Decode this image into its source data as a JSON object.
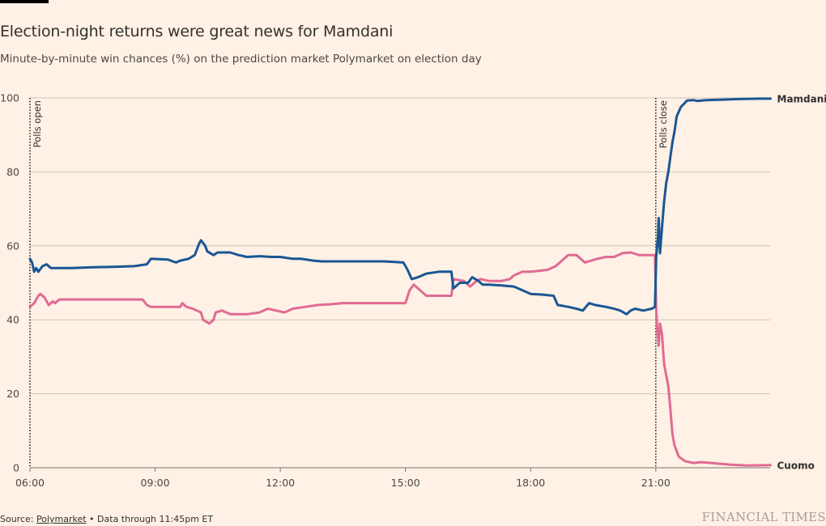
{
  "header": {
    "title": "Election-night returns were great news for Mamdani",
    "subtitle": "Minute-by-minute win chances (%) on the prediction market Polymarket on election day"
  },
  "footer": {
    "source_prefix": "Source: ",
    "source_link": "Polymarket",
    "source_suffix": " • Data through 11:45pm ET",
    "brand": "FINANCIAL TIMES"
  },
  "chart_data": {
    "type": "line",
    "title": "Election-night returns were great news for Mamdani",
    "subtitle": "Minute-by-minute win chances (%) on the prediction market Polymarket on election day",
    "xlabel": "",
    "ylabel": "",
    "x_unit": "hours (ET)",
    "xlim": [
      6,
      23.75
    ],
    "ylim": [
      0,
      100
    ],
    "x_ticks": [
      6,
      9,
      12,
      15,
      18,
      21
    ],
    "x_tick_labels": [
      "06:00",
      "09:00",
      "12:00",
      "15:00",
      "18:00",
      "21:00"
    ],
    "y_ticks": [
      0,
      20,
      40,
      60,
      80,
      100
    ],
    "y_tick_labels": [
      "0",
      "20",
      "40",
      "60",
      "80",
      "100"
    ],
    "grid": true,
    "legend": "direct labels at right end of lines",
    "annotations": [
      {
        "x": 6,
        "label": "Polls open"
      },
      {
        "x": 21,
        "label": "Polls close"
      }
    ],
    "series": [
      {
        "name": "Mamdani",
        "color": "#1a5694",
        "points": [
          [
            6.0,
            56.5
          ],
          [
            6.05,
            55.5
          ],
          [
            6.1,
            53
          ],
          [
            6.15,
            54
          ],
          [
            6.2,
            53
          ],
          [
            6.3,
            54.5
          ],
          [
            6.4,
            55
          ],
          [
            6.5,
            54
          ],
          [
            6.75,
            54
          ],
          [
            7.0,
            54
          ],
          [
            7.5,
            54.2
          ],
          [
            8.0,
            54.3
          ],
          [
            8.5,
            54.5
          ],
          [
            8.8,
            55
          ],
          [
            8.9,
            56.5
          ],
          [
            9.3,
            56.3
          ],
          [
            9.5,
            55.5
          ],
          [
            9.6,
            56
          ],
          [
            9.8,
            56.5
          ],
          [
            9.95,
            57.5
          ],
          [
            10.0,
            59
          ],
          [
            10.05,
            60.5
          ],
          [
            10.1,
            61.5
          ],
          [
            10.2,
            60
          ],
          [
            10.25,
            58.5
          ],
          [
            10.4,
            57.5
          ],
          [
            10.5,
            58.2
          ],
          [
            10.8,
            58.2
          ],
          [
            11.0,
            57.5
          ],
          [
            11.2,
            57
          ],
          [
            11.5,
            57.2
          ],
          [
            11.8,
            57
          ],
          [
            12.0,
            57
          ],
          [
            12.3,
            56.5
          ],
          [
            12.5,
            56.5
          ],
          [
            12.8,
            56
          ],
          [
            13.0,
            55.8
          ],
          [
            13.5,
            55.8
          ],
          [
            14.0,
            55.8
          ],
          [
            14.5,
            55.8
          ],
          [
            14.95,
            55.5
          ],
          [
            15.05,
            53.5
          ],
          [
            15.15,
            51
          ],
          [
            15.3,
            51.5
          ],
          [
            15.5,
            52.5
          ],
          [
            15.8,
            53
          ],
          [
            16.1,
            53
          ],
          [
            16.15,
            48.5
          ],
          [
            16.3,
            50
          ],
          [
            16.5,
            50
          ],
          [
            16.6,
            51.5
          ],
          [
            16.75,
            50.5
          ],
          [
            16.85,
            49.5
          ],
          [
            17.0,
            49.5
          ],
          [
            17.3,
            49.3
          ],
          [
            17.6,
            49
          ],
          [
            17.9,
            47.5
          ],
          [
            18.0,
            47
          ],
          [
            18.3,
            46.8
          ],
          [
            18.55,
            46.5
          ],
          [
            18.65,
            44
          ],
          [
            18.9,
            43.5
          ],
          [
            19.1,
            43
          ],
          [
            19.25,
            42.5
          ],
          [
            19.4,
            44.5
          ],
          [
            19.55,
            44
          ],
          [
            19.8,
            43.5
          ],
          [
            20.0,
            43
          ],
          [
            20.15,
            42.5
          ],
          [
            20.3,
            41.5
          ],
          [
            20.4,
            42.5
          ],
          [
            20.5,
            43
          ],
          [
            20.7,
            42.5
          ],
          [
            20.9,
            43
          ],
          [
            20.98,
            43.5
          ],
          [
            21.01,
            57
          ],
          [
            21.05,
            62
          ],
          [
            21.07,
            67.5
          ],
          [
            21.1,
            58
          ],
          [
            21.15,
            65
          ],
          [
            21.2,
            72
          ],
          [
            21.25,
            77
          ],
          [
            21.3,
            80
          ],
          [
            21.35,
            84
          ],
          [
            21.4,
            88
          ],
          [
            21.45,
            91
          ],
          [
            21.5,
            95
          ],
          [
            21.6,
            97.5
          ],
          [
            21.75,
            99.3
          ],
          [
            21.9,
            99.4
          ],
          [
            22.0,
            99.2
          ],
          [
            22.2,
            99.4
          ],
          [
            22.5,
            99.5
          ],
          [
            23.0,
            99.7
          ],
          [
            23.5,
            99.8
          ],
          [
            23.75,
            99.8
          ]
        ]
      },
      {
        "name": "Cuomo",
        "color": "#e16a93",
        "points": [
          [
            6.0,
            43.5
          ],
          [
            6.1,
            44.5
          ],
          [
            6.2,
            46.5
          ],
          [
            6.25,
            47
          ],
          [
            6.35,
            46
          ],
          [
            6.45,
            44
          ],
          [
            6.55,
            45
          ],
          [
            6.6,
            44.5
          ],
          [
            6.7,
            45.5
          ],
          [
            7.0,
            45.5
          ],
          [
            7.5,
            45.5
          ],
          [
            8.0,
            45.5
          ],
          [
            8.45,
            45.5
          ],
          [
            8.7,
            45.5
          ],
          [
            8.8,
            44
          ],
          [
            8.9,
            43.5
          ],
          [
            9.2,
            43.5
          ],
          [
            9.6,
            43.5
          ],
          [
            9.65,
            44.5
          ],
          [
            9.75,
            43.5
          ],
          [
            9.9,
            43
          ],
          [
            10.0,
            42.5
          ],
          [
            10.1,
            42
          ],
          [
            10.15,
            40
          ],
          [
            10.3,
            39
          ],
          [
            10.4,
            40
          ],
          [
            10.45,
            42
          ],
          [
            10.6,
            42.5
          ],
          [
            10.8,
            41.5
          ],
          [
            11.2,
            41.5
          ],
          [
            11.5,
            42
          ],
          [
            11.7,
            43
          ],
          [
            11.9,
            42.5
          ],
          [
            12.1,
            42
          ],
          [
            12.3,
            43
          ],
          [
            12.6,
            43.5
          ],
          [
            12.9,
            44
          ],
          [
            13.2,
            44.2
          ],
          [
            13.5,
            44.5
          ],
          [
            14.0,
            44.5
          ],
          [
            14.5,
            44.5
          ],
          [
            15.0,
            44.5
          ],
          [
            15.1,
            48
          ],
          [
            15.2,
            49.5
          ],
          [
            15.3,
            48.5
          ],
          [
            15.4,
            47.5
          ],
          [
            15.5,
            46.5
          ],
          [
            15.8,
            46.5
          ],
          [
            16.1,
            46.5
          ],
          [
            16.15,
            51
          ],
          [
            16.4,
            50.5
          ],
          [
            16.55,
            49
          ],
          [
            16.7,
            50.5
          ],
          [
            16.8,
            51
          ],
          [
            17.0,
            50.5
          ],
          [
            17.3,
            50.5
          ],
          [
            17.5,
            51
          ],
          [
            17.6,
            52
          ],
          [
            17.7,
            52.5
          ],
          [
            17.8,
            53
          ],
          [
            18.0,
            53
          ],
          [
            18.4,
            53.5
          ],
          [
            18.6,
            54.5
          ],
          [
            18.8,
            56.5
          ],
          [
            18.9,
            57.5
          ],
          [
            19.1,
            57.5
          ],
          [
            19.3,
            55.5
          ],
          [
            19.45,
            56
          ],
          [
            19.6,
            56.5
          ],
          [
            19.8,
            57
          ],
          [
            20.0,
            57
          ],
          [
            20.2,
            58
          ],
          [
            20.4,
            58.2
          ],
          [
            20.6,
            57.5
          ],
          [
            20.8,
            57.5
          ],
          [
            20.98,
            57.5
          ],
          [
            21.01,
            43
          ],
          [
            21.04,
            36.5
          ],
          [
            21.07,
            33
          ],
          [
            21.1,
            39
          ],
          [
            21.15,
            36
          ],
          [
            21.2,
            28
          ],
          [
            21.25,
            25
          ],
          [
            21.3,
            22
          ],
          [
            21.35,
            16
          ],
          [
            21.4,
            9
          ],
          [
            21.45,
            6
          ],
          [
            21.55,
            3
          ],
          [
            21.7,
            1.8
          ],
          [
            21.9,
            1.3
          ],
          [
            22.1,
            1.5
          ],
          [
            22.4,
            1.2
          ],
          [
            22.8,
            0.8
          ],
          [
            23.2,
            0.6
          ],
          [
            23.75,
            0.7
          ]
        ]
      }
    ]
  }
}
